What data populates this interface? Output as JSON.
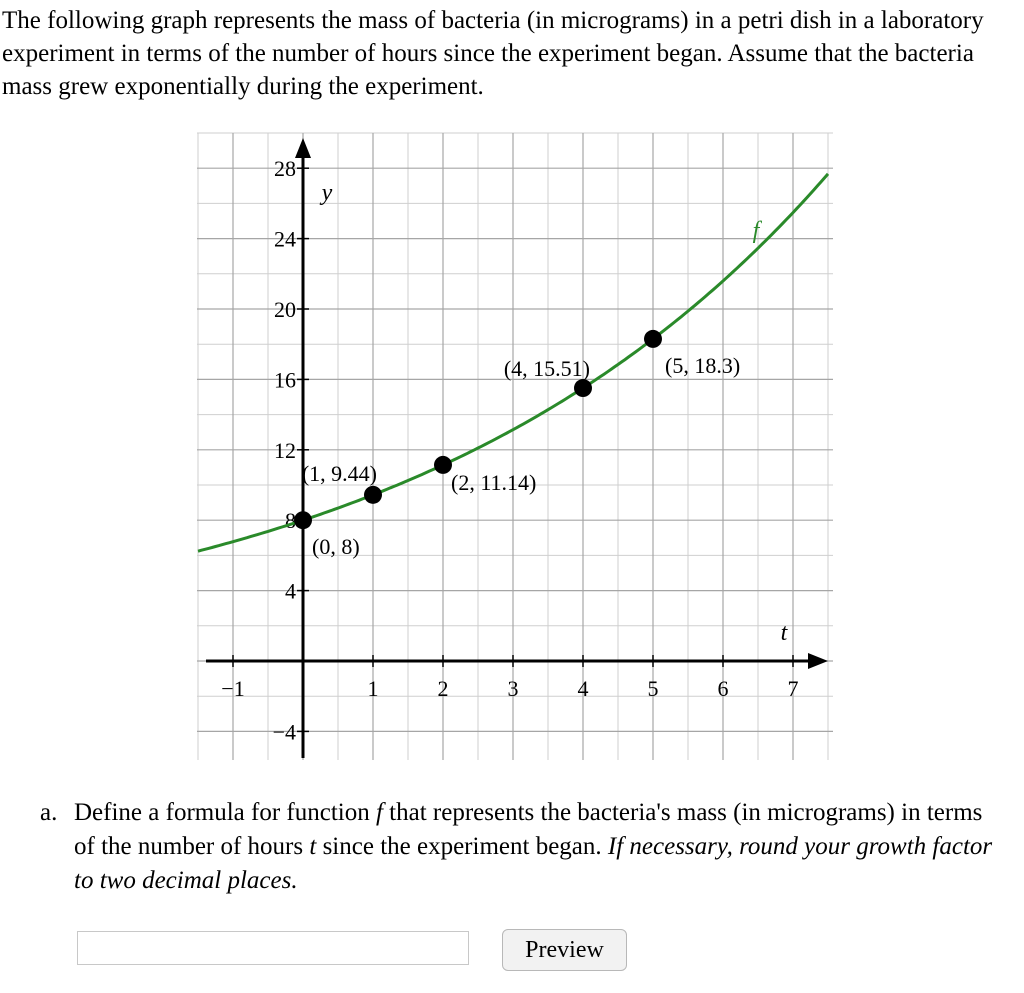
{
  "intro_text": "The following graph represents the mass of bacteria (in micrograms) in a petri dish in a laboratory experiment in terms of the number of hours since the experiment began. Assume that the bacteria mass grew exponentially during the experiment.",
  "graph": {
    "y_axis_label": "y",
    "x_axis_label": "t",
    "curve_label": "f",
    "x_tick_labels": [
      "−1",
      "1",
      "2",
      "3",
      "4",
      "5",
      "6",
      "7"
    ],
    "y_tick_labels": [
      "28",
      "24",
      "20",
      "16",
      "12",
      "8",
      "4",
      "−4"
    ],
    "point_labels": [
      "(0, 8)",
      "(1, 9.44)",
      "(2, 11.14)",
      "(4, 15.51)",
      "(5, 18.3)"
    ],
    "curve_color": "#2a8a2a",
    "point_color": "#000000"
  },
  "chart_data": {
    "type": "line",
    "title": "",
    "xlabel": "t",
    "ylabel": "y",
    "xlim": [
      -1.5,
      7.5
    ],
    "ylim": [
      -5.5,
      29
    ],
    "x_ticks": [
      -1,
      1,
      2,
      3,
      4,
      5,
      6,
      7
    ],
    "y_ticks": [
      28,
      24,
      20,
      16,
      12,
      8,
      4,
      -4
    ],
    "grid": true,
    "series": [
      {
        "name": "f",
        "function": "8*1.18^t",
        "points": [
          {
            "x": 0,
            "y": 8,
            "label": "(0, 8)"
          },
          {
            "x": 1,
            "y": 9.44,
            "label": "(1, 9.44)"
          },
          {
            "x": 2,
            "y": 11.14,
            "label": "(2, 11.14)"
          },
          {
            "x": 4,
            "y": 15.51,
            "label": "(4, 15.51)"
          },
          {
            "x": 5,
            "y": 18.3,
            "label": "(5, 18.3)"
          }
        ]
      }
    ]
  },
  "question": {
    "label": "a.",
    "text_before": "Define a formula for function ",
    "func_name": "f",
    "text_middle": " that represents the bacteria's mass (in micrograms) in terms of the number of hours ",
    "var_name": "t",
    "text_after": " since the experiment began. ",
    "hint": "If necessary, round your growth factor to two decimal places."
  },
  "answer": {
    "value": "",
    "placeholder": ""
  },
  "preview_button_label": "Preview"
}
